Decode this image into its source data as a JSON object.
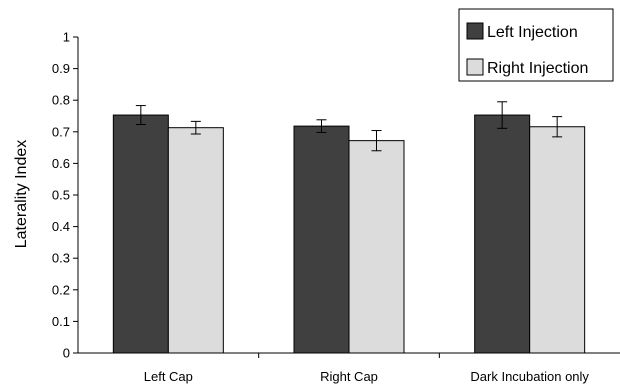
{
  "chart_data": {
    "type": "bar",
    "title": "",
    "xlabel": "",
    "ylabel": "Laterality Index",
    "ylim": [
      0,
      1
    ],
    "yticks": [
      "0",
      "0.1",
      "0.2",
      "0.3",
      "0.4",
      "0.5",
      "0.6",
      "0.7",
      "0.8",
      "0.9",
      "1"
    ],
    "categories": [
      "Left Cap",
      "Right Cap",
      "Dark Incubation only"
    ],
    "series": [
      {
        "name": "Left Injection",
        "color": "#404040",
        "values": [
          0.753,
          0.718,
          0.753
        ],
        "errors": [
          0.03,
          0.02,
          0.042
        ]
      },
      {
        "name": "Right Injection",
        "color": "#dcdcdc",
        "values": [
          0.713,
          0.672,
          0.716
        ],
        "errors": [
          0.02,
          0.032,
          0.032
        ]
      }
    ],
    "grid": false,
    "legend_position": "top-right"
  }
}
